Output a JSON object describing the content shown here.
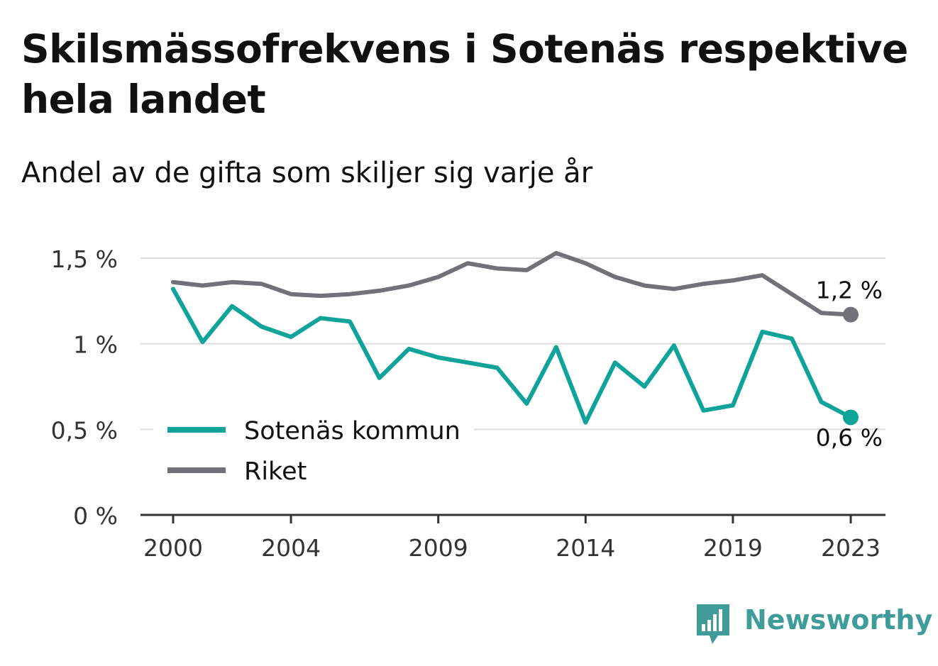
{
  "title": "Skilsmässofrekvens i Sotenäs respektive hela landet",
  "subtitle": "Andel av de gifta som skiljer sig varje år",
  "brand": {
    "name": "Newsworthy",
    "color": "#3f9c98",
    "icon": "newsworthy-logo-icon"
  },
  "chart_data": {
    "type": "line",
    "x": [
      2000,
      2001,
      2002,
      2003,
      2004,
      2005,
      2006,
      2007,
      2008,
      2009,
      2010,
      2011,
      2012,
      2013,
      2014,
      2015,
      2016,
      2017,
      2018,
      2019,
      2020,
      2021,
      2022,
      2023
    ],
    "x_ticks": [
      2000,
      2004,
      2009,
      2014,
      2019,
      2023
    ],
    "x_tick_labels": [
      "2000",
      "2004",
      "2009",
      "2014",
      "2019",
      "2023"
    ],
    "y_ticks": [
      0,
      0.5,
      1,
      1.5
    ],
    "y_tick_labels": [
      "0 %",
      "0,5 %",
      "1 %",
      "1,5 %"
    ],
    "ylim": [
      0,
      1.5
    ],
    "unit": "%",
    "grid": true,
    "legend_position": "bottom-left",
    "series": [
      {
        "name": "Sotenäs kommun",
        "color": "#0fa39a",
        "values": [
          1.32,
          1.01,
          1.22,
          1.1,
          1.04,
          1.15,
          1.13,
          0.8,
          0.97,
          0.92,
          0.89,
          0.86,
          0.65,
          0.98,
          0.54,
          0.89,
          0.75,
          0.99,
          0.61,
          0.64,
          1.07,
          1.03,
          0.66,
          0.57
        ],
        "end_label": "0,6 %"
      },
      {
        "name": "Riket",
        "color": "#727178",
        "values": [
          1.36,
          1.34,
          1.36,
          1.35,
          1.29,
          1.28,
          1.29,
          1.31,
          1.34,
          1.39,
          1.47,
          1.44,
          1.43,
          1.53,
          1.47,
          1.39,
          1.34,
          1.32,
          1.35,
          1.37,
          1.4,
          1.29,
          1.18,
          1.17
        ],
        "end_label": "1,2 %"
      }
    ]
  }
}
